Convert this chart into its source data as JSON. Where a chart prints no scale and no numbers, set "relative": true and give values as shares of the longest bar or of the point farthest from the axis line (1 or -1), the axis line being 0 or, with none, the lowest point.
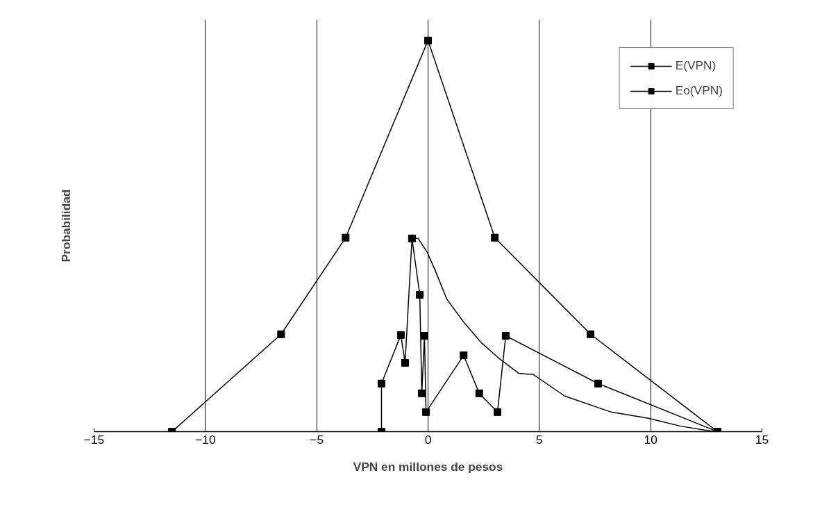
{
  "chart_data": {
    "type": "line",
    "relative": true,
    "xlabel": "VPN en millones de pesos",
    "ylabel": "Probabilidad",
    "xlim": [
      -15,
      15
    ],
    "xticks": [
      -15,
      -10,
      -5,
      0,
      5,
      10,
      15
    ],
    "grid": "x",
    "legend": "top right",
    "marker": "square",
    "series": [
      {
        "name": "E(VPN)",
        "color": "#000000",
        "x": [
          -11.5,
          -6.6,
          -3.7,
          0,
          3,
          7.3,
          13
        ],
        "values": [
          0,
          0.249,
          0.496,
          1,
          0.496,
          0.249,
          0
        ]
      },
      {
        "name": "Eo(VPN)",
        "color": "#000000",
        "x": [
          -2.09,
          -2.09,
          -1.22,
          -1.03,
          -0.72,
          -0.37,
          -0.28,
          -0.16,
          -0.09,
          1.6,
          2.3,
          3.12,
          3.49,
          7.64,
          13
        ],
        "values": [
          0,
          0.123,
          0.247,
          0.176,
          0.494,
          0.35,
          0.098,
          0.245,
          0.05,
          0.195,
          0.098,
          0.05,
          0.245,
          0.123,
          0
        ]
      },
      {
        "color": "#000000",
        "marker": "none",
        "x": [
          -0.72,
          -0.44,
          -0.03,
          0.34,
          0.84,
          1.59,
          2.4,
          3.24,
          4.08,
          4.49,
          4.7,
          6.14,
          8.23,
          9.9,
          11.35,
          12.88
        ],
        "values": [
          0.494,
          0.494,
          0.458,
          0.41,
          0.339,
          0.281,
          0.227,
          0.185,
          0.149,
          0.147,
          0.147,
          0.091,
          0.05,
          0.034,
          0.014,
          0
        ]
      }
    ]
  }
}
